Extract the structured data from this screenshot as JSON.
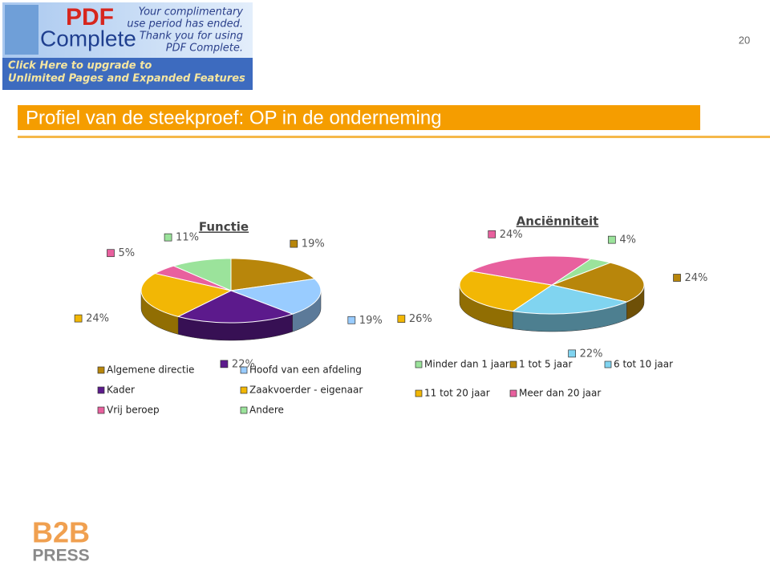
{
  "page": {
    "banner": {
      "brand": "PDF",
      "product": "Complete",
      "notice": [
        "Your complimentary",
        "use period has ended.",
        "Thank you for using",
        "PDF Complete."
      ],
      "upgrade": [
        "Click Here to upgrade to",
        "Unlimited Pages and Expanded Features"
      ]
    },
    "page_number": "20",
    "title": "Profiel van de steekproef: OP in de onderneming",
    "logo": {
      "mark": "B2B",
      "text": "PRESS"
    }
  },
  "chart_data": [
    {
      "type": "pie",
      "title": "Functie",
      "categories": [
        "Algemene directie",
        "Hoofd van een afdeling",
        "Kader",
        "Zaakvoerder - eigenaar",
        "Vrij beroep",
        "Andere"
      ],
      "values": [
        19,
        19,
        22,
        24,
        5,
        11
      ],
      "value_labels": [
        "19%",
        "19%",
        "22%",
        "24%",
        "5%",
        "11%"
      ],
      "colors": [
        "#b8860b",
        "#99ccff",
        "#5c1a8c",
        "#f2b705",
        "#e8609e",
        "#9be39b"
      ]
    },
    {
      "type": "pie",
      "title": "Anciënniteit",
      "categories": [
        "Minder dan 1 jaar",
        "1 tot 5 jaar",
        "6 tot 10 jaar",
        "11 tot 20 jaar",
        "Meer dan 20 jaar"
      ],
      "values": [
        4,
        24,
        22,
        26,
        24
      ],
      "value_labels": [
        "4%",
        "24%",
        "22%",
        "26%",
        "24%"
      ],
      "colors": [
        "#9be39b",
        "#b8860b",
        "#80d4f0",
        "#f2b705",
        "#e8609e"
      ]
    }
  ]
}
